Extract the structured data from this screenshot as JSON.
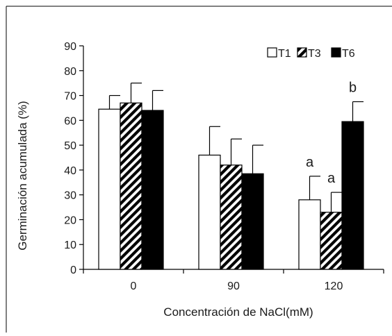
{
  "chart_data": {
    "type": "bar",
    "title": "",
    "xlabel": "Concentración de NaCl(mM)",
    "ylabel": "Germinación acumulada (%)",
    "ylim": [
      0,
      90
    ],
    "yticks": [
      0,
      10,
      20,
      30,
      40,
      50,
      60,
      70,
      80,
      90
    ],
    "categories": [
      "0",
      "90",
      "120"
    ],
    "legend_position": "top-right",
    "series": [
      {
        "name": "T1",
        "pattern": "empty",
        "values": [
          64.5,
          46,
          28
        ],
        "errors": [
          5.5,
          11.5,
          9.5
        ],
        "labels": [
          "",
          "",
          "a"
        ]
      },
      {
        "name": "T3",
        "pattern": "hatched",
        "values": [
          67,
          42,
          23
        ],
        "errors": [
          8,
          10.5,
          8
        ],
        "labels": [
          "",
          "",
          "a"
        ]
      },
      {
        "name": "T6",
        "pattern": "solid",
        "values": [
          64,
          38.5,
          59.5
        ],
        "errors": [
          8,
          11.5,
          8
        ],
        "labels": [
          "",
          "",
          "b"
        ]
      }
    ],
    "grid": false
  },
  "colors": {
    "bar_fill_empty": "#ffffff",
    "bar_fill_solid": "#000000",
    "bar_stroke": "#000000",
    "axis": "#000000"
  }
}
